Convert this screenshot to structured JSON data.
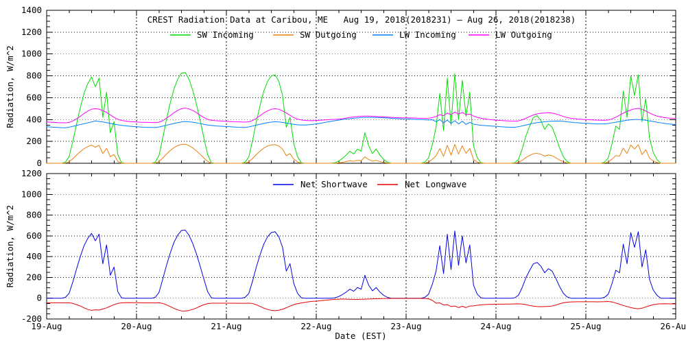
{
  "figure": {
    "background": "#ffffff",
    "axis_color": "#000000"
  },
  "chart_data": [
    {
      "type": "line",
      "panel": "top",
      "title": "CREST Radiation Data at Caribou, ME   Aug 19, 2018(2018231) – Aug 26, 2018(2018238)",
      "ylabel": "Radiation, W/m^2",
      "ylim": [
        0,
        1400
      ],
      "ytick_step": 200,
      "yticks": [
        0,
        200,
        400,
        600,
        800,
        1000,
        1200,
        1400
      ],
      "xlim_days": [
        0,
        7
      ],
      "x_unit": "hours since 19-Aug 00:00 EST",
      "x_step_hours": 1,
      "grid": "dotted",
      "legend_position": "inside-top",
      "series": [
        {
          "name": "SW Incoming",
          "color": "#00dc00",
          "values": [
            0,
            0,
            0,
            0,
            0,
            10,
            60,
            200,
            360,
            510,
            640,
            730,
            790,
            700,
            780,
            420,
            650,
            280,
            380,
            80,
            5,
            0,
            0,
            0,
            0,
            0,
            0,
            0,
            0,
            10,
            70,
            230,
            400,
            550,
            680,
            770,
            825,
            830,
            770,
            670,
            540,
            390,
            230,
            80,
            5,
            0,
            0,
            0,
            0,
            0,
            0,
            0,
            0,
            10,
            60,
            210,
            380,
            530,
            660,
            750,
            800,
            810,
            750,
            620,
            330,
            420,
            180,
            60,
            5,
            0,
            0,
            0,
            0,
            0,
            0,
            0,
            0,
            5,
            20,
            45,
            75,
            110,
            85,
            130,
            110,
            280,
            160,
            90,
            130,
            75,
            35,
            10,
            0,
            0,
            0,
            0,
            0,
            0,
            0,
            0,
            0,
            10,
            50,
            170,
            330,
            640,
            300,
            780,
            350,
            820,
            400,
            760,
            430,
            650,
            160,
            50,
            5,
            0,
            0,
            0,
            0,
            0,
            0,
            0,
            0,
            5,
            35,
            130,
            250,
            340,
            420,
            435,
            390,
            310,
            360,
            330,
            240,
            140,
            60,
            15,
            0,
            0,
            0,
            0,
            0,
            0,
            0,
            0,
            0,
            10,
            50,
            180,
            340,
            310,
            660,
            420,
            800,
            620,
            810,
            380,
            590,
            230,
            100,
            35,
            0,
            0,
            0,
            0,
            0
          ]
        },
        {
          "name": "SW Outgoing",
          "color": "#e8820c",
          "values": [
            0,
            0,
            0,
            0,
            0,
            2,
            13,
            42,
            76,
            107,
            134,
            153,
            166,
            147,
            164,
            88,
            137,
            59,
            80,
            17,
            1,
            0,
            0,
            0,
            0,
            0,
            0,
            0,
            0,
            2,
            15,
            48,
            84,
            116,
            143,
            162,
            173,
            174,
            162,
            141,
            113,
            82,
            48,
            17,
            1,
            0,
            0,
            0,
            0,
            0,
            0,
            0,
            0,
            2,
            13,
            44,
            80,
            111,
            139,
            158,
            168,
            170,
            158,
            130,
            69,
            88,
            38,
            13,
            1,
            0,
            0,
            0,
            0,
            0,
            0,
            0,
            0,
            1,
            4,
            9,
            16,
            23,
            18,
            27,
            23,
            59,
            34,
            19,
            27,
            16,
            7,
            2,
            0,
            0,
            0,
            0,
            0,
            0,
            0,
            0,
            0,
            2,
            11,
            36,
            69,
            134,
            63,
            164,
            74,
            172,
            84,
            160,
            90,
            137,
            34,
            11,
            1,
            0,
            0,
            0,
            0,
            0,
            0,
            0,
            0,
            1,
            7,
            27,
            53,
            71,
            88,
            91,
            82,
            65,
            76,
            69,
            50,
            29,
            13,
            3,
            0,
            0,
            0,
            0,
            0,
            0,
            0,
            0,
            0,
            2,
            11,
            38,
            71,
            65,
            139,
            88,
            168,
            130,
            170,
            80,
            124,
            48,
            21,
            7,
            0,
            0,
            0,
            0,
            0
          ]
        },
        {
          "name": "LW Incoming",
          "color": "#0080ff",
          "values": [
            335,
            332,
            330,
            328,
            326,
            325,
            330,
            338,
            346,
            355,
            362,
            370,
            378,
            388,
            382,
            378,
            372,
            365,
            358,
            352,
            347,
            343,
            340,
            337,
            335,
            332,
            330,
            329,
            328,
            327,
            332,
            340,
            348,
            356,
            364,
            372,
            378,
            382,
            380,
            376,
            370,
            363,
            356,
            350,
            346,
            342,
            340,
            338,
            336,
            334,
            332,
            330,
            329,
            328,
            333,
            341,
            349,
            357,
            365,
            372,
            377,
            380,
            378,
            374,
            368,
            362,
            356,
            352,
            350,
            350,
            352,
            356,
            360,
            365,
            372,
            378,
            384,
            390,
            395,
            400,
            405,
            408,
            412,
            415,
            418,
            420,
            420,
            420,
            419,
            418,
            416,
            414,
            412,
            410,
            408,
            406,
            405,
            404,
            402,
            400,
            400,
            398,
            396,
            398,
            380,
            400,
            370,
            395,
            365,
            390,
            360,
            385,
            355,
            375,
            358,
            352,
            348,
            345,
            342,
            340,
            338,
            335,
            333,
            331,
            330,
            330,
            334,
            342,
            350,
            358,
            366,
            372,
            376,
            380,
            383,
            385,
            386,
            386,
            384,
            380,
            376,
            372,
            370,
            368,
            366,
            364,
            362,
            360,
            360,
            360,
            364,
            370,
            376,
            382,
            388,
            394,
            398,
            400,
            400,
            398,
            394,
            388,
            382,
            376,
            370,
            365,
            360,
            357,
            355
          ]
        },
        {
          "name": "LW Outgoing",
          "color": "#ff00ff",
          "values": [
            378,
            376,
            374,
            372,
            371,
            370,
            374,
            388,
            408,
            430,
            455,
            478,
            495,
            500,
            495,
            482,
            465,
            442,
            420,
            402,
            392,
            386,
            382,
            380,
            378,
            376,
            375,
            374,
            373,
            372,
            376,
            390,
            412,
            436,
            462,
            484,
            500,
            505,
            498,
            484,
            464,
            440,
            418,
            402,
            394,
            390,
            388,
            386,
            384,
            382,
            380,
            379,
            378,
            377,
            380,
            392,
            412,
            436,
            460,
            480,
            494,
            500,
            494,
            480,
            460,
            438,
            418,
            404,
            396,
            392,
            390,
            390,
            392,
            394,
            396,
            398,
            400,
            402,
            404,
            408,
            414,
            420,
            424,
            428,
            430,
            432,
            432,
            430,
            428,
            426,
            424,
            422,
            420,
            418,
            417,
            416,
            416,
            415,
            414,
            413,
            412,
            411,
            412,
            418,
            428,
            445,
            435,
            460,
            445,
            468,
            450,
            465,
            445,
            450,
            432,
            420,
            412,
            406,
            402,
            398,
            395,
            392,
            390,
            388,
            386,
            385,
            388,
            398,
            412,
            428,
            442,
            452,
            458,
            460,
            462,
            460,
            452,
            440,
            428,
            418,
            412,
            408,
            404,
            402,
            400,
            398,
            396,
            395,
            394,
            393,
            396,
            406,
            422,
            440,
            458,
            474,
            488,
            498,
            502,
            494,
            478,
            460,
            444,
            432,
            424,
            418,
            414,
            412,
            410
          ]
        }
      ]
    },
    {
      "type": "line",
      "panel": "bottom",
      "ylabel": "Radiation, W/m^2",
      "xlabel": "Date (EST)",
      "ylim": [
        -200,
        1200
      ],
      "ytick_step": 200,
      "yticks": [
        -200,
        0,
        200,
        400,
        600,
        800,
        1000,
        1200
      ],
      "xlim_days": [
        0,
        7
      ],
      "xtick_labels": [
        "19-Aug",
        "20-Aug",
        "21-Aug",
        "22-Aug",
        "23-Aug",
        "24-Aug",
        "25-Aug",
        "26-Aug"
      ],
      "x_unit": "hours since 19-Aug 00:00 EST",
      "x_step_hours": 1,
      "grid": "dotted",
      "legend_position": "inside-top",
      "series": [
        {
          "name": "Net Shortwave",
          "color": "#0000e6",
          "values": [
            0,
            0,
            0,
            0,
            0,
            8,
            47,
            158,
            284,
            403,
            506,
            577,
            624,
            553,
            616,
            332,
            513,
            221,
            300,
            63,
            4,
            0,
            0,
            0,
            0,
            0,
            0,
            0,
            0,
            8,
            55,
            182,
            316,
            434,
            537,
            608,
            652,
            656,
            608,
            529,
            427,
            308,
            182,
            63,
            4,
            0,
            0,
            0,
            0,
            0,
            0,
            0,
            0,
            8,
            47,
            166,
            300,
            419,
            521,
            592,
            632,
            640,
            592,
            490,
            261,
            332,
            142,
            47,
            4,
            0,
            0,
            0,
            0,
            0,
            0,
            0,
            0,
            4,
            16,
            36,
            59,
            87,
            67,
            103,
            87,
            221,
            126,
            71,
            103,
            59,
            28,
            8,
            0,
            0,
            0,
            0,
            0,
            0,
            0,
            0,
            0,
            8,
            39,
            134,
            261,
            506,
            237,
            616,
            276,
            648,
            316,
            600,
            340,
            513,
            126,
            39,
            4,
            0,
            0,
            0,
            0,
            0,
            0,
            0,
            0,
            4,
            28,
            103,
            197,
            269,
            332,
            344,
            308,
            245,
            284,
            261,
            190,
            111,
            47,
            12,
            0,
            0,
            0,
            0,
            0,
            0,
            0,
            0,
            0,
            8,
            39,
            142,
            269,
            245,
            521,
            332,
            632,
            490,
            640,
            300,
            466,
            182,
            79,
            28,
            0,
            0,
            0,
            0,
            0
          ]
        },
        {
          "name": "Net Longwave",
          "color": "#e60000",
          "values": [
            -43,
            -44,
            -44,
            -44,
            -45,
            -45,
            -44,
            -50,
            -62,
            -75,
            -93,
            -108,
            -117,
            -112,
            -113,
            -104,
            -93,
            -77,
            -62,
            -50,
            -45,
            -43,
            -42,
            -43,
            -43,
            -44,
            -45,
            -45,
            -45,
            -45,
            -44,
            -50,
            -64,
            -80,
            -98,
            -112,
            -122,
            -123,
            -118,
            -108,
            -94,
            -77,
            -62,
            -52,
            -48,
            -48,
            -48,
            -48,
            -48,
            -48,
            -48,
            -49,
            -49,
            -49,
            -47,
            -51,
            -63,
            -79,
            -95,
            -108,
            -117,
            -120,
            -116,
            -106,
            -92,
            -76,
            -62,
            -52,
            -46,
            -40,
            -34,
            -30,
            -28,
            -25,
            -21,
            -17,
            -14,
            -11,
            -9,
            -8,
            -9,
            -11,
            -11,
            -12,
            -10,
            -9,
            -8,
            -6,
            -5,
            -4,
            -3,
            -3,
            -2,
            -2,
            -2,
            -2,
            -2,
            -2,
            -2,
            -2,
            -2,
            -3,
            -6,
            -20,
            -48,
            -45,
            -65,
            -62,
            -80,
            -75,
            -90,
            -78,
            -90,
            -75,
            -74,
            -68,
            -64,
            -61,
            -60,
            -58,
            -57,
            -57,
            -57,
            -56,
            -56,
            -55,
            -54,
            -56,
            -62,
            -70,
            -76,
            -80,
            -82,
            -80,
            -79,
            -75,
            -66,
            -54,
            -44,
            -38,
            -36,
            -35,
            -34,
            -34,
            -34,
            -34,
            -34,
            -35,
            -34,
            -33,
            -32,
            -36,
            -46,
            -58,
            -70,
            -80,
            -90,
            -98,
            -102,
            -96,
            -84,
            -72,
            -62,
            -56,
            -54,
            -53,
            -54,
            -55,
            -55
          ]
        }
      ]
    }
  ]
}
